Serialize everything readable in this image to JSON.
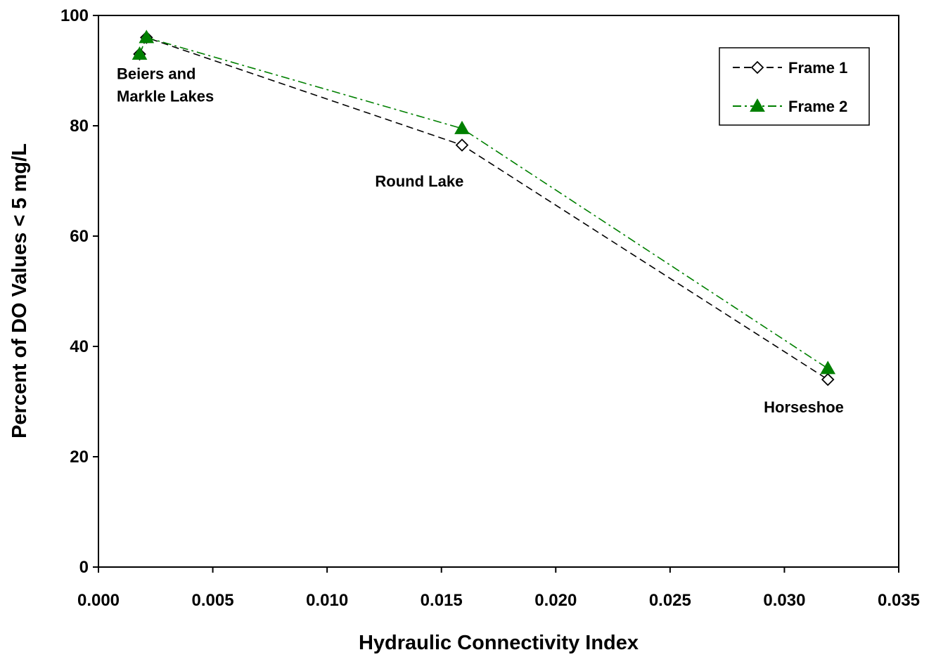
{
  "chart_data": {
    "type": "line",
    "title": "",
    "xlabel": "Hydraulic Connectivity Index",
    "ylabel": "Percent of DO Values < 5 mg/L",
    "xlim": [
      0,
      0.035
    ],
    "ylim": [
      0,
      100
    ],
    "x_ticks": [
      0,
      0.005,
      0.01,
      0.015,
      0.02,
      0.025,
      0.03,
      0.035
    ],
    "x_tick_labels": [
      "0.000",
      "0.005",
      "0.010",
      "0.015",
      "0.020",
      "0.025",
      "0.030",
      "0.035"
    ],
    "y_ticks": [
      0,
      20,
      40,
      60,
      80,
      100
    ],
    "y_tick_labels": [
      "0",
      "20",
      "40",
      "60",
      "80",
      "100"
    ],
    "grid": false,
    "legend_position": "top-right",
    "series": [
      {
        "name": "Frame 1",
        "color": "#000000",
        "marker": "diamond-open",
        "line_style": "dashed",
        "x": [
          0.0018,
          0.0021,
          0.0159,
          0.0319
        ],
        "y": [
          93,
          96,
          76.5,
          34
        ]
      },
      {
        "name": "Frame 2",
        "color": "#008000",
        "marker": "triangle-filled",
        "line_style": "dash-dot",
        "x": [
          0.0018,
          0.0021,
          0.0159,
          0.0319
        ],
        "y": [
          93,
          96,
          79.5,
          36
        ]
      }
    ],
    "annotations": [
      {
        "lines": [
          "Beiers and",
          "Markle Lakes"
        ],
        "x": 0.0008,
        "y": 88.5
      },
      {
        "lines": [
          "Round Lake"
        ],
        "x": 0.0121,
        "y": 69
      },
      {
        "lines": [
          "Horseshoe"
        ],
        "x": 0.0291,
        "y": 28
      }
    ]
  }
}
